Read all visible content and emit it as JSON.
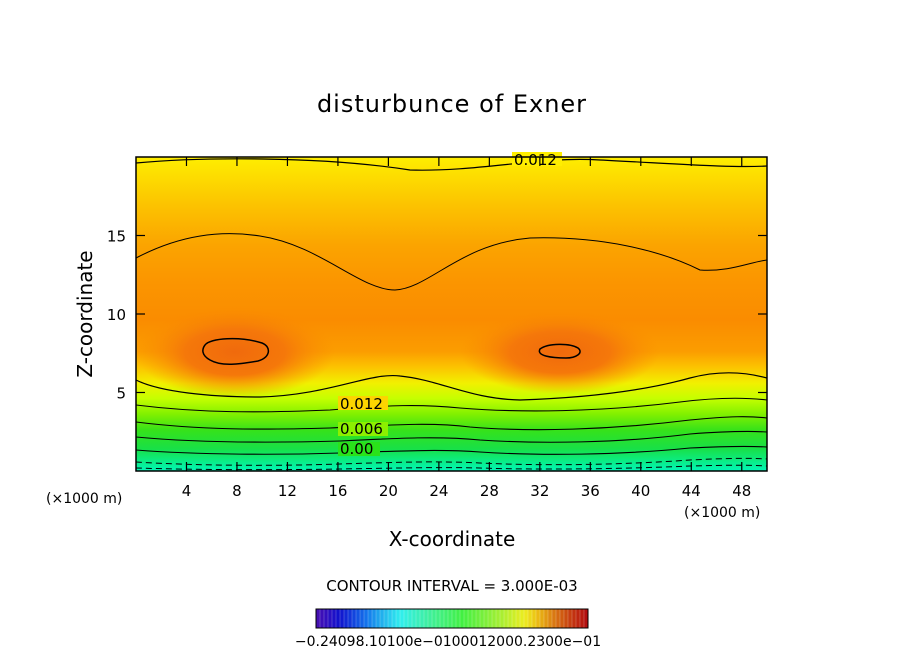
{
  "chart_data": {
    "type": "contour",
    "title": "disturbunce of Exner",
    "xlabel": "X-coordinate",
    "ylabel": "Z-coordinate",
    "x_unit": "(×1000 m)",
    "x_unit_left": "(×1000 m)",
    "xlim": [
      0,
      50
    ],
    "ylim": [
      0,
      20
    ],
    "x_ticks": [
      4,
      8,
      12,
      16,
      20,
      24,
      28,
      32,
      36,
      40,
      44,
      48
    ],
    "y_ticks": [
      5,
      10,
      15
    ],
    "contour_interval_text": "CONTOUR INTERVAL = 3.000E-03",
    "contour_labels": [
      "0.012",
      "0.012",
      "0.006",
      "0.00"
    ],
    "colorbar_text": "−0.24098.10100e−0100012000.2300e−01",
    "colors": {
      "dark_orange": "#f4700a",
      "orange": "#fb9000",
      "light_orange": "#fcae00",
      "yellow": "#fde300",
      "lime": "#b8ff00",
      "green": "#2ae81a",
      "cyan_green": "#00ffb0"
    }
  }
}
